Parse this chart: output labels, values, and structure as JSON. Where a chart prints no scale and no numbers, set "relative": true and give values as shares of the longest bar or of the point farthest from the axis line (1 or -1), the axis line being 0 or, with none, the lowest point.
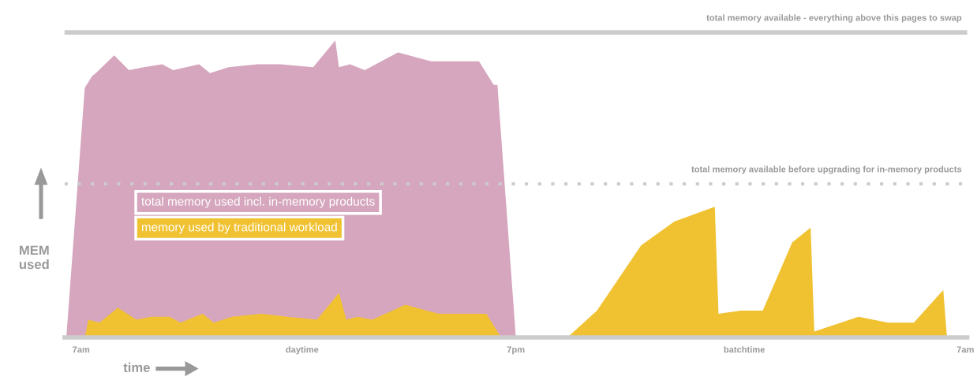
{
  "chart_data": {
    "type": "area",
    "relative": true,
    "xlabel": "time",
    "ylabel": "MEM\nused",
    "categories": [
      null,
      null,
      null,
      null,
      "7am",
      null,
      null,
      null,
      null,
      null,
      null,
      null,
      null,
      null,
      null,
      null,
      null,
      null,
      null,
      null,
      null,
      null,
      null,
      null,
      null,
      null,
      null,
      null,
      null,
      null,
      null,
      null,
      null,
      null,
      null,
      null,
      null,
      null,
      null,
      null,
      null,
      null,
      null,
      null,
      null,
      null,
      null,
      null,
      null,
      null,
      null,
      null,
      null,
      null,
      null,
      null,
      null,
      null,
      null,
      null,
      null,
      null,
      null,
      null,
      "daytime",
      null,
      null,
      null,
      null,
      null,
      null,
      null,
      null,
      null,
      null,
      null,
      null,
      null,
      null,
      null,
      null,
      null,
      null,
      null,
      null,
      null,
      null,
      null,
      null,
      null,
      null,
      null,
      null,
      null,
      null,
      null,
      null,
      null,
      null,
      null,
      null,
      null,
      null,
      null,
      null,
      null,
      null,
      null,
      null,
      null,
      null,
      null,
      null,
      null,
      null,
      null,
      null,
      null,
      null,
      null,
      null,
      null,
      "7pm",
      null,
      null,
      null,
      null,
      null,
      null,
      null,
      null,
      null,
      null,
      null,
      null,
      null,
      null,
      null,
      null,
      null,
      null,
      null,
      null,
      null,
      null,
      null,
      null,
      null,
      null,
      null,
      null,
      null,
      null,
      null,
      null,
      null,
      null,
      null,
      null,
      null,
      null,
      null,
      null,
      null,
      null,
      null,
      null,
      null,
      null,
      null,
      null,
      null,
      null,
      null,
      null,
      null,
      null,
      null,
      null,
      null,
      null,
      null,
      null,
      null,
      "batchtime",
      null,
      null,
      null,
      null,
      null,
      null,
      null,
      null,
      null,
      null,
      null,
      null,
      null,
      null,
      null,
      null,
      null,
      null,
      null,
      null,
      null,
      null,
      null,
      null,
      null,
      null,
      null,
      null,
      null,
      null,
      null,
      null,
      null,
      null,
      null,
      null,
      null,
      null,
      null,
      null,
      null,
      null,
      null,
      null,
      null,
      null,
      null,
      null,
      null,
      null,
      null,
      null,
      null,
      null,
      null,
      null,
      null,
      null,
      null,
      "7am"
    ],
    "series": [
      {
        "name": "total memory used incl. in-memory products",
        "color": "#d5a6bd",
        "values": [
          0,
          null,
          null,
          null,
          null,
          0.84,
          null,
          0.88,
          0.89,
          null,
          null,
          null,
          null,
          0.95,
          null,
          null,
          null,
          0.9,
          null,
          null,
          null,
          0.91,
          null,
          null,
          null,
          null,
          0.92,
          null,
          null,
          0.9,
          null,
          null,
          null,
          null,
          null,
          null,
          0.92,
          null,
          null,
          0.89,
          null,
          null,
          null,
          null,
          0.91,
          null,
          null,
          null,
          null,
          null,
          null,
          null,
          0.92,
          null,
          null,
          null,
          null,
          null,
          0.92,
          null,
          null,
          null,
          null,
          null,
          null,
          null,
          null,
          0.91,
          null,
          null,
          null,
          null,
          null,
          1.0,
          0.91,
          null,
          null,
          0.92,
          null,
          null,
          null,
          0.9,
          null,
          null,
          null,
          null,
          null,
          null,
          null,
          null,
          0.96,
          null,
          null,
          null,
          null,
          null,
          null,
          null,
          null,
          0.93,
          null,
          null,
          null,
          null,
          null,
          null,
          null,
          null,
          null,
          null,
          null,
          null,
          0.93,
          null,
          null,
          null,
          0.85,
          0.85,
          null,
          null,
          null,
          null,
          0,
          null,
          null,
          null,
          null,
          null,
          null,
          null,
          null,
          null,
          null,
          null,
          null,
          null,
          null,
          null,
          null,
          null,
          null,
          null,
          null,
          null,
          null,
          null,
          null,
          null,
          null,
          null,
          null,
          null,
          null,
          null,
          null,
          null,
          null,
          null,
          null,
          null,
          null,
          null,
          null,
          null,
          null,
          null,
          null,
          null,
          null,
          null,
          null,
          null,
          null,
          null,
          null,
          null,
          null,
          null,
          null,
          null,
          null,
          null,
          null,
          null,
          null,
          null,
          null,
          null,
          null,
          null,
          null,
          null,
          null,
          null,
          null,
          null,
          null,
          null,
          null,
          null,
          null,
          null,
          null,
          null,
          null,
          null,
          null,
          null,
          null,
          null,
          null,
          null,
          null,
          null,
          null,
          null,
          null,
          null,
          null,
          null,
          null,
          null,
          null,
          null,
          null,
          null,
          null,
          null,
          null,
          null,
          null,
          null,
          null,
          null,
          null,
          null,
          null,
          null,
          null,
          null,
          null,
          null,
          null,
          null,
          null
        ]
      },
      {
        "name": "memory used by traditional workload",
        "color": "#f0c232",
        "values": [
          null,
          null,
          null,
          null,
          null,
          0,
          0.06,
          null,
          null,
          0.05,
          null,
          null,
          null,
          null,
          0.1,
          null,
          null,
          null,
          null,
          0.06,
          null,
          null,
          null,
          0.07,
          null,
          null,
          null,
          null,
          0.07,
          null,
          null,
          0.05,
          null,
          null,
          null,
          null,
          null,
          0.08,
          null,
          null,
          0.05,
          null,
          null,
          null,
          null,
          0.07,
          null,
          null,
          null,
          null,
          null,
          null,
          null,
          0.08,
          null,
          null,
          null,
          null,
          null,
          null,
          0.07,
          null,
          null,
          null,
          null,
          null,
          null,
          null,
          0.06,
          null,
          null,
          null,
          null,
          null,
          0.15,
          null,
          0.06,
          null,
          null,
          0.07,
          null,
          null,
          null,
          0.06,
          null,
          null,
          null,
          null,
          null,
          null,
          null,
          null,
          0.11,
          null,
          null,
          null,
          null,
          null,
          null,
          null,
          null,
          0.08,
          null,
          null,
          null,
          null,
          null,
          null,
          null,
          null,
          null,
          null,
          null,
          null,
          0.08,
          null,
          null,
          null,
          0,
          null,
          null,
          null,
          null,
          null,
          null,
          null,
          null,
          null,
          null,
          null,
          null,
          null,
          null,
          null,
          null,
          null,
          0,
          null,
          null,
          null,
          null,
          null,
          null,
          null,
          0.09,
          null,
          null,
          null,
          null,
          null,
          null,
          null,
          null,
          null,
          null,
          null,
          0.31,
          null,
          null,
          null,
          null,
          null,
          null,
          null,
          null,
          0.39,
          null,
          null,
          null,
          null,
          null,
          null,
          null,
          null,
          null,
          null,
          0.44,
          0.08,
          null,
          null,
          null,
          null,
          null,
          0.09,
          null,
          null,
          null,
          null,
          null,
          0.09,
          null,
          null,
          null,
          null,
          null,
          null,
          null,
          0.32,
          null,
          null,
          null,
          null,
          0.37,
          0.02,
          null,
          null,
          null,
          null,
          null,
          null,
          null,
          null,
          null,
          null,
          null,
          0.07,
          null,
          null,
          null,
          null,
          null,
          null,
          null,
          0.05,
          null,
          null,
          null,
          null,
          null,
          null,
          0.05,
          null,
          null,
          null,
          null,
          null,
          null,
          null,
          0.16,
          0,
          null,
          null,
          null,
          null,
          null
        ]
      }
    ],
    "ref_lines": [
      {
        "axis": "y",
        "value": 1.027,
        "label": "total memory available - everything above this pages to swap",
        "color": "#cccccc",
        "line_style": "solid"
      },
      {
        "axis": "y",
        "value": 0.517,
        "label": "total memory available before upgrading for in-memory products",
        "color": "#cccccc",
        "line_style": "dotted"
      }
    ],
    "legend": "center left"
  }
}
